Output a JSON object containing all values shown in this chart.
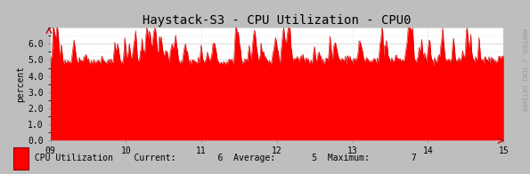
{
  "title": "Haystack-S3 - CPU Utilization - CPU0",
  "ylabel": "percent",
  "x_ticks": [
    "09",
    "10",
    "11",
    "12",
    "13",
    "14",
    "15"
  ],
  "ylim": [
    0.0,
    7.0
  ],
  "y_ticks": [
    0.0,
    1.0,
    2.0,
    3.0,
    4.0,
    5.0,
    6.0
  ],
  "fill_color": "#FF0000",
  "line_color": "#CC0000",
  "bg_color": "#FFFFFF",
  "outer_bg": "#BEBEBE",
  "grid_color": "#CCCCCC",
  "grid_minor_color": "#DDDDDD",
  "legend_label": "CPU Utilization",
  "legend_current": "6",
  "legend_average": "5",
  "legend_maximum": "7",
  "rrdtool_text": "RRDTOOL / TOBI OETIKER",
  "title_fontsize": 10,
  "label_fontsize": 7,
  "tick_fontsize": 7,
  "legend_fontsize": 7,
  "avg_value": 5.0,
  "spike_value": 7.0,
  "n_points": 500
}
